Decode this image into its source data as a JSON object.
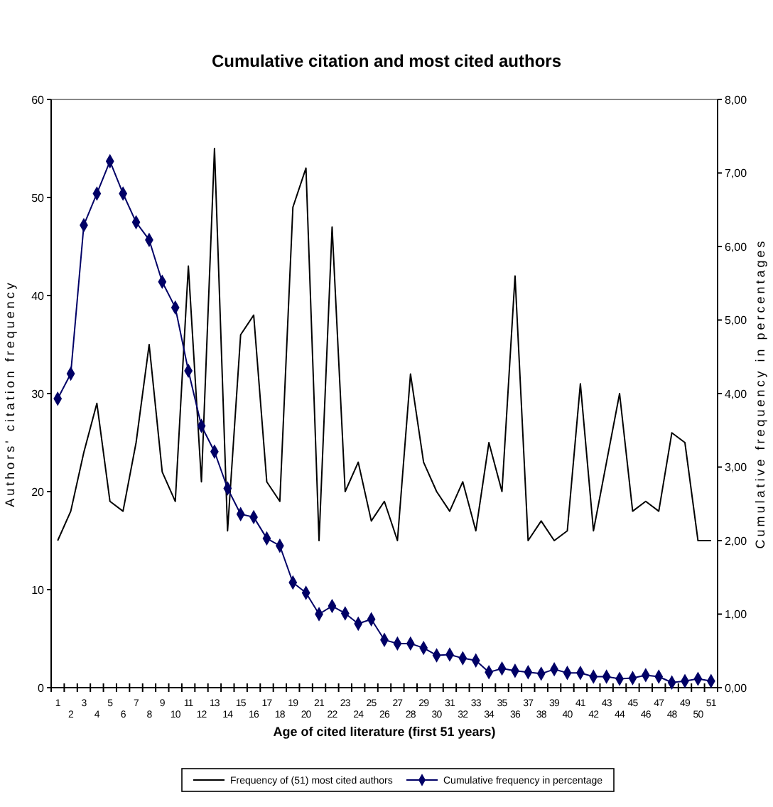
{
  "chart_data": {
    "type": "line",
    "title": "Cumulative citation and most cited authors",
    "xlabel": "Age of cited literature (first 51 years)",
    "ylabel": "Authors' citation frequency",
    "y2label": "Cumulative frequency in percentages",
    "categories": [
      "1",
      "2",
      "3",
      "4",
      "5",
      "6",
      "7",
      "8",
      "9",
      "10",
      "11",
      "12",
      "13",
      "14",
      "15",
      "16",
      "17",
      "18",
      "19",
      "20",
      "21",
      "22",
      "23",
      "24",
      "25",
      "26",
      "27",
      "28",
      "29",
      "30",
      "31",
      "32",
      "33",
      "34",
      "35",
      "36",
      "37",
      "38",
      "39",
      "40",
      "41",
      "42",
      "43",
      "44",
      "45",
      "46",
      "47",
      "48",
      "49",
      "50",
      "51"
    ],
    "series": [
      {
        "name": "Frequency of (51) most cited authors",
        "color": "#000000",
        "marker": "none",
        "values": [
          15,
          18,
          24,
          29,
          19,
          18,
          25,
          35,
          22,
          19,
          43,
          21,
          55,
          16,
          36,
          38,
          21,
          19,
          49,
          53,
          15,
          47,
          20,
          23,
          17,
          19,
          15,
          32,
          23,
          20,
          18,
          21,
          16,
          25,
          20,
          42,
          15,
          17,
          15,
          16,
          31,
          16,
          23,
          30,
          18,
          19,
          18,
          26,
          25,
          15,
          15
        ]
      },
      {
        "name": "Cumulative frequency in percentage",
        "color": "#000066",
        "marker": "diamond",
        "axis": "y2",
        "values": [
          3.93,
          4.27,
          6.29,
          6.72,
          7.16,
          6.72,
          6.33,
          6.09,
          5.52,
          5.17,
          4.31,
          3.56,
          3.21,
          2.71,
          2.36,
          2.32,
          2.03,
          1.93,
          1.43,
          1.29,
          1.0,
          1.11,
          1.01,
          0.87,
          0.93,
          0.65,
          0.6,
          0.6,
          0.54,
          0.44,
          0.45,
          0.4,
          0.37,
          0.21,
          0.26,
          0.23,
          0.21,
          0.19,
          0.25,
          0.2,
          0.2,
          0.15,
          0.15,
          0.12,
          0.13,
          0.17,
          0.15,
          0.07,
          0.09,
          0.12,
          0.09
        ]
      }
    ],
    "ylim": [
      0,
      60
    ],
    "yticks": [
      0,
      10,
      20,
      30,
      40,
      50,
      60
    ],
    "y2lim": [
      0,
      8
    ],
    "y2ticks": [
      {
        "value": 0,
        "label": "0,00"
      },
      {
        "value": 1,
        "label": "1,00"
      },
      {
        "value": 2,
        "label": "2,00"
      },
      {
        "value": 3,
        "label": "3,00"
      },
      {
        "value": 4,
        "label": "4,00"
      },
      {
        "value": 5,
        "label": "5,00"
      },
      {
        "value": 6,
        "label": "6,00"
      },
      {
        "value": 7,
        "label": "7,00"
      },
      {
        "value": 8,
        "label": "8,00"
      }
    ],
    "grid": false,
    "legend": "bottom",
    "line_style": "solid"
  }
}
